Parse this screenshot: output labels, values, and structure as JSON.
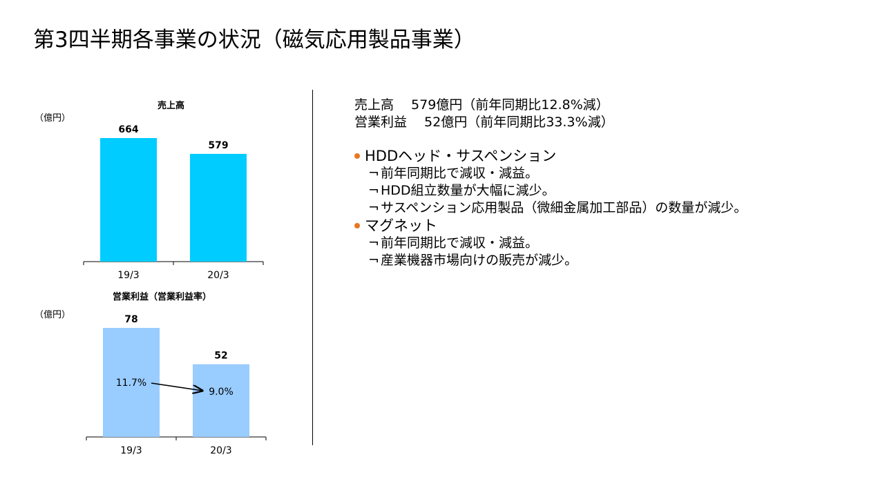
{
  "slide": {
    "title": "第3四半期各事業の状況（磁気応用製品事業）"
  },
  "colors": {
    "sales_bar": "#00CCFF",
    "profit_bar": "#99CCFF",
    "bullet": "#E87722"
  },
  "chart_data": [
    {
      "type": "bar",
      "title": "売上高",
      "unit": "（億円）",
      "categories": [
        "19/3",
        "20/3"
      ],
      "values": [
        664,
        579
      ],
      "value_labels": [
        "664",
        "579"
      ],
      "ylim": [
        0,
        700
      ],
      "grid": false
    },
    {
      "type": "bar",
      "title": "営業利益（営業利益率）",
      "unit": "（億円）",
      "categories": [
        "19/3",
        "20/3"
      ],
      "values": [
        78,
        52
      ],
      "value_labels": [
        "78",
        "52"
      ],
      "margin_labels": [
        "11.7%",
        "9.0%"
      ],
      "ylim": [
        0,
        85
      ],
      "grid": false
    }
  ],
  "summary": {
    "sales": "売上高　 579億円（前年同期比12.8%減）",
    "profit": "営業利益　 52億円（前年同期比33.3%減）"
  },
  "sections": [
    {
      "heading": "HDDヘッド・サスペンション",
      "mark": "¬",
      "items": [
        "前年同期比で減収・減益。",
        "HDD組立数量が大幅に減少。",
        "サスペンション応用製品（微細金属加工部品）の数量が減少。"
      ]
    },
    {
      "heading": "マグネット",
      "mark": "¬",
      "items": [
        "前年同期比で減収・減益。",
        "産業機器市場向けの販売が減少。"
      ]
    }
  ]
}
